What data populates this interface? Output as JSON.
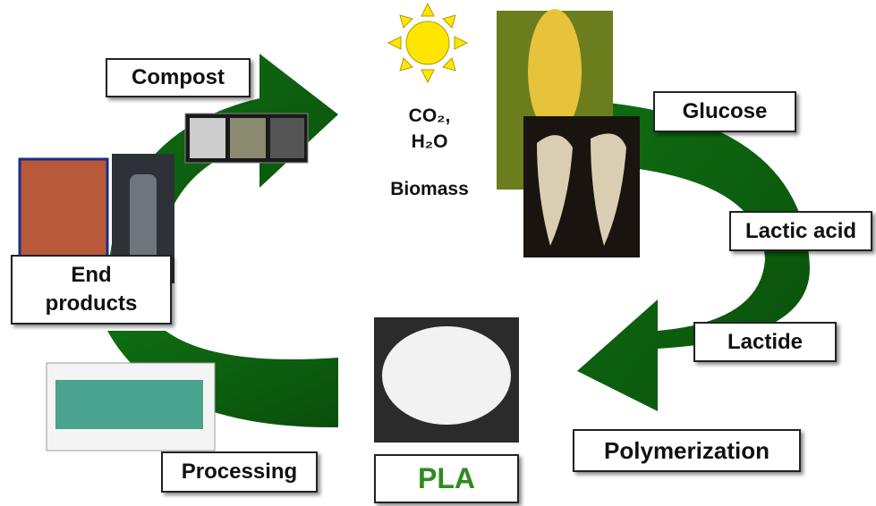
{
  "labels": {
    "compost": "Compost",
    "co2": "CO₂,",
    "h2o": "H₂O",
    "biomass": "Biomass",
    "glucose": "Glucose",
    "lactic_acid": "Lactic acid",
    "lactide": "Lactide",
    "polymerization": "Polymerization",
    "pla": "PLA",
    "processing": "Processing",
    "end_products": "End products"
  }
}
